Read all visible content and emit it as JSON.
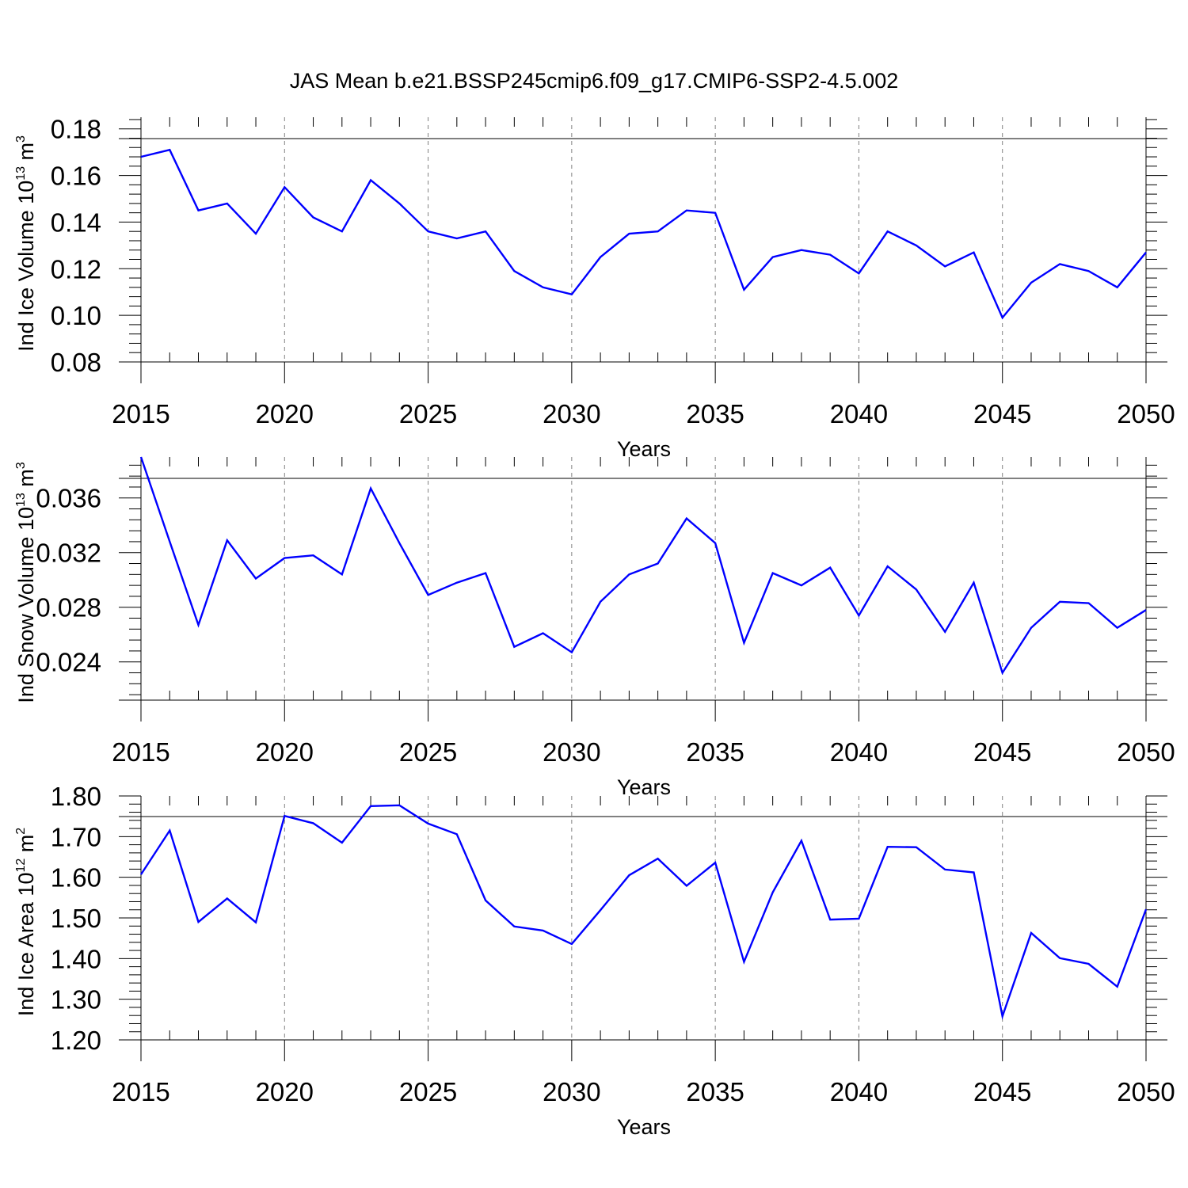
{
  "title": "JAS Mean b.e21.BSSP245cmip6.f09_g17.CMIP6-SSP2-4.5.002",
  "colors": {
    "line": "#0000ff",
    "grid": "#808080",
    "axis": "#000000"
  },
  "chart_data": [
    {
      "type": "line",
      "title": "JAS Mean b.e21.BSSP245cmip6.f09_g17.CMIP6-SSP2-4.5.002",
      "xlabel": "Years",
      "ylabel": {
        "main": "Ind Ice Volume 10",
        "sup1": "13",
        "mid": " m",
        "sup2": "3"
      },
      "xlim": [
        2015,
        2050
      ],
      "ylim": [
        0.08,
        0.185
      ],
      "x_ticks": [
        2015,
        2020,
        2025,
        2030,
        2035,
        2040,
        2045,
        2050
      ],
      "x_tick_labels": [
        "2015",
        "2020",
        "2025",
        "2030",
        "2035",
        "2040",
        "2045",
        "2050"
      ],
      "y_ticks": [
        0.08,
        0.1,
        0.12,
        0.14,
        0.16,
        0.18
      ],
      "y_tick_labels": [
        "0.08",
        "0.10",
        "0.12",
        "0.14",
        "0.16",
        "0.18"
      ],
      "grid": "vertical dashed at major x ticks",
      "x": [
        2015,
        2016,
        2017,
        2018,
        2019,
        2020,
        2021,
        2022,
        2023,
        2024,
        2025,
        2026,
        2027,
        2028,
        2029,
        2030,
        2031,
        2032,
        2033,
        2034,
        2035,
        2036,
        2037,
        2038,
        2039,
        2040,
        2041,
        2042,
        2043,
        2044,
        2045,
        2046,
        2047,
        2048,
        2049,
        2050
      ],
      "series": [
        {
          "values": [
            0.168,
            0.171,
            0.145,
            0.148,
            0.135,
            0.155,
            0.142,
            0.136,
            0.158,
            0.148,
            0.136,
            0.133,
            0.136,
            0.119,
            0.112,
            0.109,
            0.125,
            0.135,
            0.136,
            0.145,
            0.144,
            0.111,
            0.125,
            0.128,
            0.126,
            0.118,
            0.136,
            0.13,
            0.121,
            0.127,
            0.099,
            0.114,
            0.122,
            0.119,
            0.112,
            0.127
          ]
        }
      ]
    },
    {
      "type": "line",
      "xlabel": "Years",
      "ylabel": {
        "main": "Ind Snow Volume 10",
        "sup1": "13",
        "mid": " m",
        "sup2": "3"
      },
      "xlim": [
        2015,
        2050
      ],
      "ylim": [
        0.0212,
        0.039
      ],
      "x_ticks": [
        2015,
        2020,
        2025,
        2030,
        2035,
        2040,
        2045,
        2050
      ],
      "x_tick_labels": [
        "2015",
        "2020",
        "2025",
        "2030",
        "2035",
        "2040",
        "2045",
        "2050"
      ],
      "y_ticks": [
        0.024,
        0.028,
        0.032,
        0.036
      ],
      "y_tick_labels": [
        "0.024",
        "0.028",
        "0.032",
        "0.036"
      ],
      "grid": "vertical dashed at major x ticks",
      "x": [
        2015,
        2016,
        2017,
        2018,
        2019,
        2020,
        2021,
        2022,
        2023,
        2024,
        2025,
        2026,
        2027,
        2028,
        2029,
        2030,
        2031,
        2032,
        2033,
        2034,
        2035,
        2036,
        2037,
        2038,
        2039,
        2040,
        2041,
        2042,
        2043,
        2044,
        2045,
        2046,
        2047,
        2048,
        2049,
        2050
      ],
      "series": [
        {
          "values": [
            0.039,
            0.0328,
            0.0267,
            0.0329,
            0.0301,
            0.0316,
            0.0318,
            0.0304,
            0.0367,
            0.0327,
            0.0289,
            0.0298,
            0.0305,
            0.0251,
            0.0261,
            0.0247,
            0.0284,
            0.0304,
            0.0312,
            0.0345,
            0.0327,
            0.0254,
            0.0305,
            0.0296,
            0.0309,
            0.0274,
            0.031,
            0.0293,
            0.0262,
            0.0298,
            0.0232,
            0.0265,
            0.0284,
            0.0283,
            0.0265,
            0.0278
          ]
        }
      ]
    },
    {
      "type": "line",
      "xlabel": "Years",
      "ylabel": {
        "main": "Ind Ice Area 10",
        "sup1": "12",
        "mid": " m",
        "sup2": "2"
      },
      "xlim": [
        2015,
        2050
      ],
      "ylim": [
        1.2,
        1.8
      ],
      "x_ticks": [
        2015,
        2020,
        2025,
        2030,
        2035,
        2040,
        2045,
        2050
      ],
      "x_tick_labels": [
        "2015",
        "2020",
        "2025",
        "2030",
        "2035",
        "2040",
        "2045",
        "2050"
      ],
      "y_ticks": [
        1.2,
        1.3,
        1.4,
        1.5,
        1.6,
        1.7,
        1.8
      ],
      "y_tick_labels": [
        "1.20",
        "1.30",
        "1.40",
        "1.50",
        "1.60",
        "1.70",
        "1.80"
      ],
      "grid": "vertical dashed at major x ticks",
      "x": [
        2015,
        2016,
        2017,
        2018,
        2019,
        2020,
        2021,
        2022,
        2023,
        2024,
        2025,
        2026,
        2027,
        2028,
        2029,
        2030,
        2031,
        2032,
        2033,
        2034,
        2035,
        2036,
        2037,
        2038,
        2039,
        2040,
        2041,
        2042,
        2043,
        2044,
        2045,
        2046,
        2047,
        2048,
        2049,
        2050
      ],
      "series": [
        {
          "values": [
            1.607,
            1.715,
            1.49,
            1.548,
            1.489,
            1.751,
            1.733,
            1.685,
            1.775,
            1.777,
            1.732,
            1.706,
            1.543,
            1.479,
            1.469,
            1.436,
            1.519,
            1.605,
            1.646,
            1.579,
            1.636,
            1.392,
            1.563,
            1.69,
            1.496,
            1.498,
            1.675,
            1.674,
            1.619,
            1.612,
            1.258,
            1.463,
            1.401,
            1.387,
            1.331,
            1.521
          ]
        }
      ]
    }
  ]
}
